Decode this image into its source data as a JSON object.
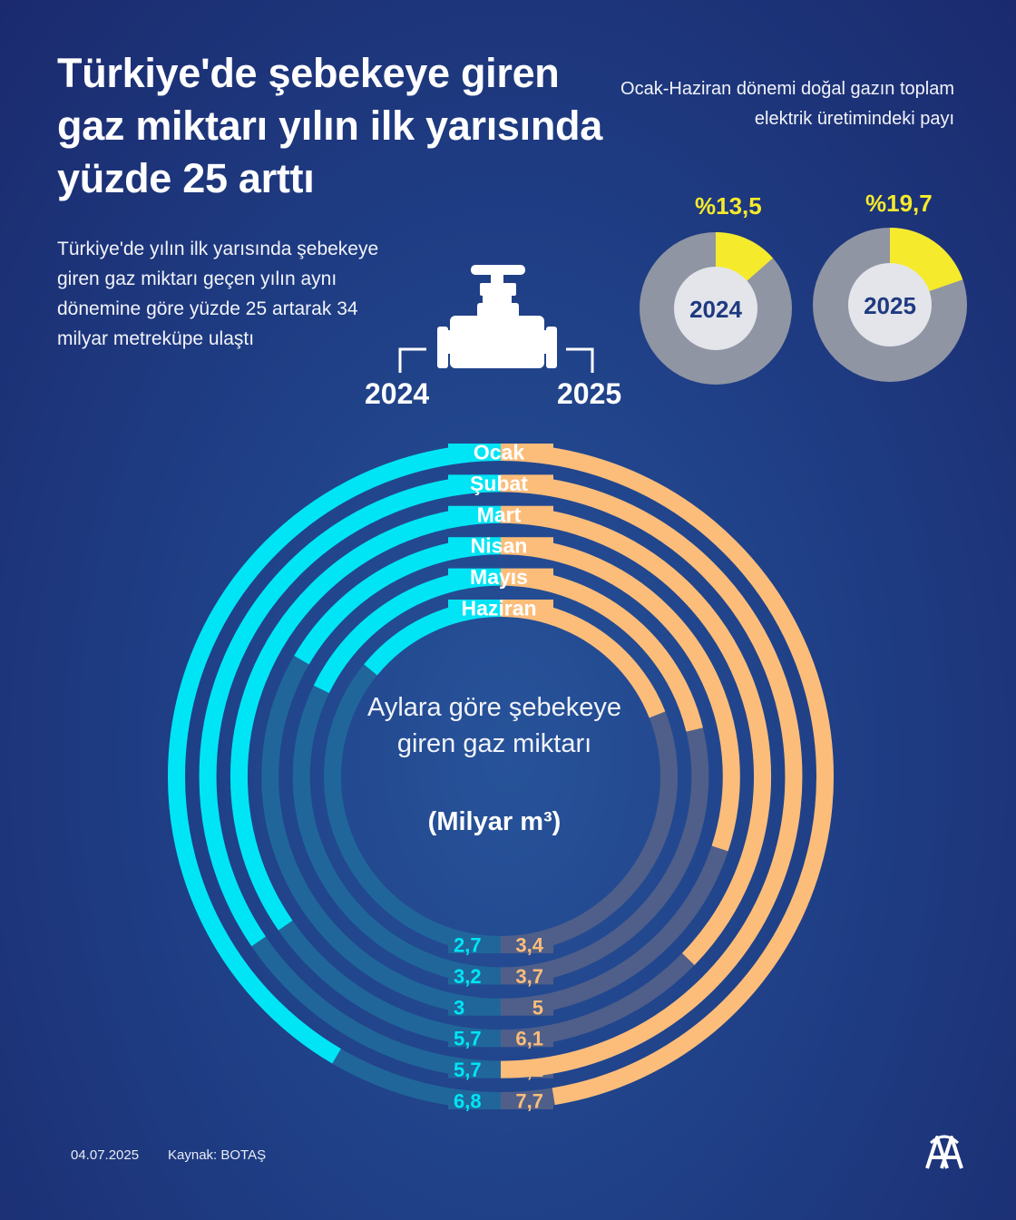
{
  "title": "Türkiye'de şebekeye giren gaz miktarı yılın ilk yarısında yüzde 25 arttı",
  "subtitle": "Türkiye'de yılın ilk yarısında şebekeye giren gaz miktarı geçen yılın aynı dönemine göre yüzde 25 artarak 34 milyar metreküpe ulaştı",
  "pie_section": {
    "heading": "Ocak-Haziran dönemi doğal gazın toplam elektrik üretimindeki payı",
    "pies": [
      {
        "year": "2024",
        "label": "%13,5",
        "share_percent": 13.5
      },
      {
        "year": "2025",
        "label": "%19,7",
        "share_percent": 19.7
      }
    ]
  },
  "colors": {
    "year_2024": "#00e5f5",
    "year_2025": "#fcbd7a",
    "pie_share": "#f5ea2c",
    "pie_rest": "#8f95a3",
    "pie_center": "#e3e5ea",
    "pie_year_text": "#1f3a80",
    "track_2024": "#20669a",
    "track_2025": "#4f5f8a",
    "background": "#1f3f86"
  },
  "center": {
    "text": "Aylara göre şebekeye giren gaz miktarı",
    "unit": "(Milyar m³)"
  },
  "chart_data": {
    "type": "radial-bar",
    "series": [
      {
        "name": "2024",
        "values": [
          6.8,
          5.7,
          5.7,
          3,
          3.2,
          2.7
        ],
        "labels": [
          "6,8",
          "5,7",
          "5,7",
          "3",
          "3,2",
          "2,7"
        ]
      },
      {
        "name": "2025",
        "values": [
          7.7,
          8.1,
          6.1,
          5,
          3.7,
          3.4
        ],
        "labels": [
          "7,7",
          "8,1",
          "6,1",
          "5",
          "3,7",
          "3,4"
        ]
      }
    ],
    "categories": [
      "Ocak",
      "Şubat",
      "Mart",
      "Nisan",
      "Mayıs",
      "Haziran"
    ],
    "max_value": 8.5
  },
  "footer": {
    "date": "04.07.2025",
    "source": "Kaynak: BOTAŞ"
  },
  "icons": [
    "gas-valve-icon",
    "aa-logo"
  ]
}
